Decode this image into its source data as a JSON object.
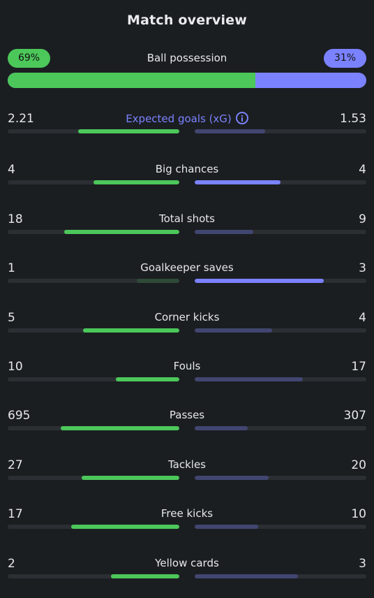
{
  "title": "Match overview",
  "possession": {
    "label": "Ball possession",
    "home_text": "69%",
    "away_text": "31%",
    "home_fraction": 0.69
  },
  "colors": {
    "home_strong": "#4cc75a",
    "home_weak": "#2f4a38",
    "away_strong": "#7b82ff",
    "away_weak": "#414670",
    "track": "#2b2f33",
    "background": "#1b1e21"
  },
  "stats": [
    {
      "label": "Expected goals (xG)",
      "home": "2.21",
      "away": "1.53",
      "home_fraction": 0.59,
      "away_fraction": 0.41,
      "leader": "home",
      "info_icon": "info-icon"
    },
    {
      "label": "Big chances",
      "home": "4",
      "away": "4",
      "home_fraction": 0.5,
      "away_fraction": 0.5,
      "leader": "both"
    },
    {
      "label": "Total shots",
      "home": "18",
      "away": "9",
      "home_fraction": 0.67,
      "away_fraction": 0.34,
      "leader": "home"
    },
    {
      "label": "Goalkeeper saves",
      "home": "1",
      "away": "3",
      "home_fraction": 0.25,
      "away_fraction": 0.75,
      "leader": "away"
    },
    {
      "label": "Corner kicks",
      "home": "5",
      "away": "4",
      "home_fraction": 0.56,
      "away_fraction": 0.45,
      "leader": "home"
    },
    {
      "label": "Fouls",
      "home": "10",
      "away": "17",
      "home_fraction": 0.37,
      "away_fraction": 0.63,
      "leader": "home"
    },
    {
      "label": "Passes",
      "home": "695",
      "away": "307",
      "home_fraction": 0.69,
      "away_fraction": 0.31,
      "leader": "home"
    },
    {
      "label": "Tackles",
      "home": "27",
      "away": "20",
      "home_fraction": 0.57,
      "away_fraction": 0.43,
      "leader": "home"
    },
    {
      "label": "Free kicks",
      "home": "17",
      "away": "10",
      "home_fraction": 0.63,
      "away_fraction": 0.37,
      "leader": "home"
    },
    {
      "label": "Yellow cards",
      "home": "2",
      "away": "3",
      "home_fraction": 0.4,
      "away_fraction": 0.6,
      "leader": "home"
    }
  ]
}
